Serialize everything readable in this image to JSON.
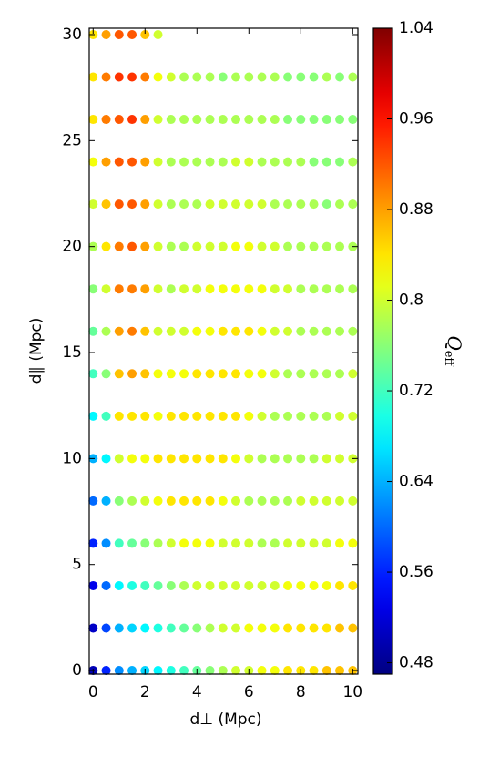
{
  "chart_data": {
    "type": "scatter",
    "x_label": "d⊥ (Mpc)",
    "y_label": "d∥ (Mpc)",
    "colorbar_label": {
      "main": "Q",
      "sub": "eff"
    },
    "xlim": [
      -0.15,
      10.2
    ],
    "xticks": [
      0,
      2,
      4,
      6,
      8,
      10
    ],
    "ylim": [
      -0.17,
      30.3
    ],
    "yticks": [
      0,
      5,
      10,
      15,
      20,
      25,
      30
    ],
    "clim": [
      0.47,
      1.04
    ],
    "cticks": [
      0.48,
      0.56,
      0.64,
      0.72,
      0.8,
      0.88,
      0.96,
      1.04
    ],
    "colormap": "jet",
    "x": [
      0,
      0.5,
      1,
      1.5,
      2,
      2.5,
      3,
      3.5,
      4,
      4.5,
      5,
      5.5,
      6,
      6.5,
      7,
      7.5,
      8,
      8.5,
      9,
      9.5,
      10
    ],
    "y": [
      0,
      2,
      4,
      6,
      8,
      10,
      12,
      14,
      16,
      18,
      20,
      22,
      24,
      26,
      28,
      30
    ],
    "values": [
      [
        0.5,
        0.56,
        0.62,
        0.64,
        0.66,
        0.68,
        0.7,
        0.72,
        0.74,
        0.76,
        0.78,
        0.8,
        0.8,
        0.82,
        0.82,
        0.84,
        0.84,
        0.84,
        0.86,
        0.86,
        0.86
      ],
      [
        0.51,
        0.58,
        0.64,
        0.66,
        0.68,
        0.7,
        0.72,
        0.74,
        0.76,
        0.78,
        0.8,
        0.8,
        0.82,
        0.82,
        0.82,
        0.84,
        0.84,
        0.84,
        0.84,
        0.86,
        0.86
      ],
      [
        0.53,
        0.6,
        0.68,
        0.7,
        0.72,
        0.74,
        0.76,
        0.78,
        0.8,
        0.8,
        0.8,
        0.8,
        0.8,
        0.8,
        0.8,
        0.82,
        0.82,
        0.82,
        0.82,
        0.84,
        0.84
      ],
      [
        0.56,
        0.62,
        0.72,
        0.74,
        0.76,
        0.78,
        0.8,
        0.82,
        0.82,
        0.82,
        0.8,
        0.8,
        0.8,
        0.78,
        0.78,
        0.8,
        0.8,
        0.8,
        0.8,
        0.82,
        0.82
      ],
      [
        0.6,
        0.64,
        0.76,
        0.78,
        0.8,
        0.82,
        0.84,
        0.84,
        0.84,
        0.84,
        0.82,
        0.8,
        0.78,
        0.78,
        0.78,
        0.78,
        0.8,
        0.8,
        0.8,
        0.8,
        0.8
      ],
      [
        0.64,
        0.68,
        0.8,
        0.82,
        0.82,
        0.84,
        0.84,
        0.84,
        0.84,
        0.84,
        0.84,
        0.82,
        0.8,
        0.78,
        0.78,
        0.78,
        0.78,
        0.78,
        0.8,
        0.8,
        0.8
      ],
      [
        0.68,
        0.72,
        0.84,
        0.84,
        0.84,
        0.82,
        0.84,
        0.84,
        0.84,
        0.84,
        0.84,
        0.84,
        0.82,
        0.8,
        0.78,
        0.78,
        0.78,
        0.78,
        0.78,
        0.8,
        0.8
      ],
      [
        0.72,
        0.76,
        0.86,
        0.88,
        0.86,
        0.82,
        0.82,
        0.82,
        0.84,
        0.84,
        0.84,
        0.84,
        0.82,
        0.82,
        0.8,
        0.78,
        0.78,
        0.78,
        0.78,
        0.78,
        0.8
      ],
      [
        0.74,
        0.78,
        0.88,
        0.9,
        0.86,
        0.8,
        0.8,
        0.8,
        0.82,
        0.82,
        0.84,
        0.84,
        0.84,
        0.82,
        0.8,
        0.8,
        0.78,
        0.78,
        0.78,
        0.78,
        0.78
      ],
      [
        0.76,
        0.8,
        0.9,
        0.9,
        0.88,
        0.8,
        0.78,
        0.8,
        0.8,
        0.82,
        0.82,
        0.82,
        0.82,
        0.82,
        0.8,
        0.8,
        0.78,
        0.78,
        0.78,
        0.78,
        0.78
      ],
      [
        0.78,
        0.84,
        0.9,
        0.92,
        0.88,
        0.8,
        0.78,
        0.78,
        0.8,
        0.8,
        0.8,
        0.82,
        0.82,
        0.8,
        0.8,
        0.78,
        0.78,
        0.78,
        0.78,
        0.78,
        0.78
      ],
      [
        0.8,
        0.86,
        0.92,
        0.92,
        0.88,
        0.8,
        0.78,
        0.78,
        0.78,
        0.8,
        0.8,
        0.8,
        0.8,
        0.8,
        0.78,
        0.78,
        0.78,
        0.78,
        0.76,
        0.78,
        0.78
      ],
      [
        0.82,
        0.88,
        0.92,
        0.92,
        0.88,
        0.8,
        0.78,
        0.78,
        0.78,
        0.78,
        0.78,
        0.8,
        0.8,
        0.78,
        0.78,
        0.78,
        0.78,
        0.76,
        0.76,
        0.76,
        0.78
      ],
      [
        0.84,
        0.9,
        0.92,
        0.94,
        0.88,
        0.8,
        0.78,
        0.78,
        0.78,
        0.78,
        0.78,
        0.78,
        0.78,
        0.78,
        0.78,
        0.76,
        0.76,
        0.76,
        0.76,
        0.76,
        0.76
      ],
      [
        0.84,
        0.9,
        0.94,
        0.94,
        0.9,
        0.82,
        0.8,
        0.78,
        0.78,
        0.78,
        0.76,
        0.78,
        0.78,
        0.78,
        0.78,
        0.76,
        0.76,
        0.76,
        0.78,
        0.76,
        0.78
      ],
      [
        0.84,
        0.88,
        0.92,
        0.92,
        0.86,
        0.8,
        null,
        null,
        null,
        null,
        null,
        null,
        null,
        null,
        null,
        null,
        null,
        null,
        null,
        null,
        null
      ]
    ]
  }
}
